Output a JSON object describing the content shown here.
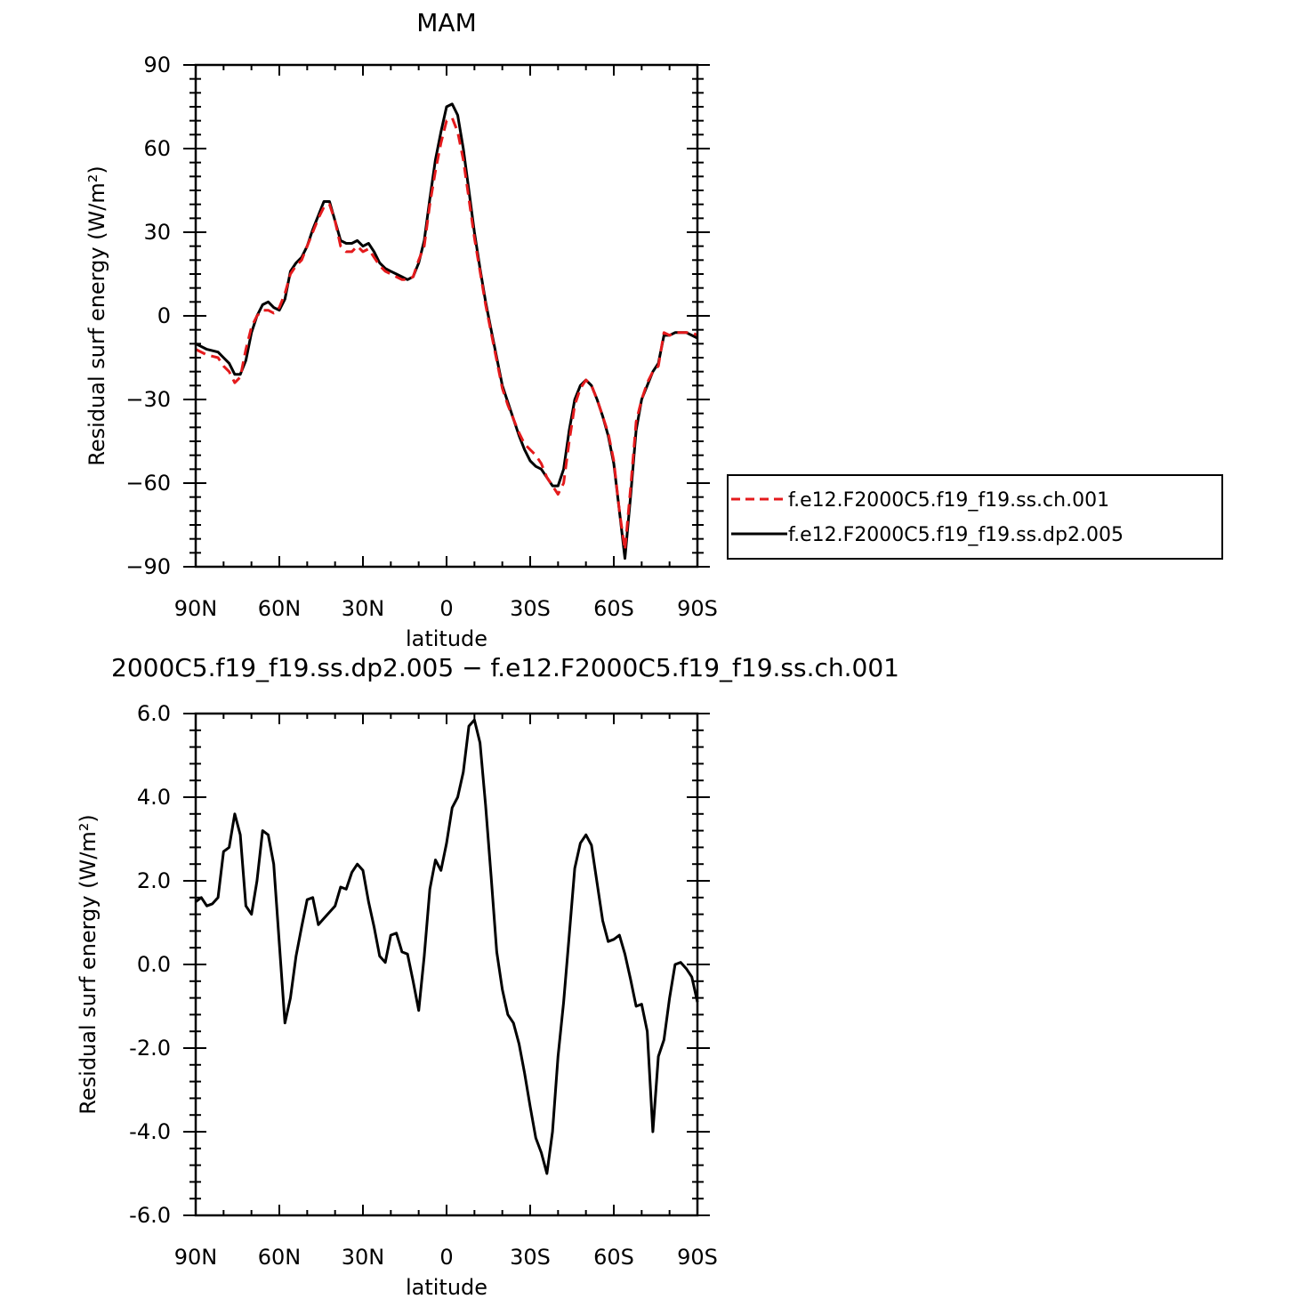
{
  "chart_data": [
    {
      "type": "line",
      "title": "MAM",
      "xlabel": "latitude",
      "ylabel": "Residual surf energy (W/m²)",
      "xlim": [
        90,
        -90
      ],
      "ylim": [
        -90,
        90
      ],
      "x_ticks": [
        90,
        60,
        30,
        0,
        -30,
        -60,
        -90
      ],
      "x_tick_labels": [
        "90N",
        "60N",
        "30N",
        "0",
        "30S",
        "60S",
        "90S"
      ],
      "y_ticks": [
        -90,
        -60,
        -30,
        0,
        30,
        60,
        90
      ],
      "y_tick_labels": [
        "−90",
        "−60",
        "−30",
        "0",
        "30",
        "60",
        "90"
      ],
      "legend_position": "right, outside plot",
      "series": [
        {
          "name": "f.e12.F2000C5.f19_f19.ss.ch.001",
          "color": "#e41a1c",
          "dash": "dashed",
          "x": [
            90,
            86,
            82,
            80,
            78,
            76,
            74,
            72,
            70,
            68,
            66,
            64,
            62,
            60,
            58,
            56,
            54,
            52,
            50,
            48,
            46,
            44,
            42,
            40,
            38,
            36,
            34,
            32,
            30,
            28,
            26,
            24,
            22,
            20,
            18,
            16,
            14,
            12,
            10,
            8,
            6,
            4,
            2,
            0,
            -2,
            -4,
            -6,
            -8,
            -10,
            -12,
            -14,
            -16,
            -18,
            -20,
            -22,
            -24,
            -26,
            -28,
            -30,
            -32,
            -34,
            -36,
            -38,
            -40,
            -42,
            -44,
            -46,
            -48,
            -50,
            -52,
            -54,
            -56,
            -58,
            -60,
            -62,
            -64,
            -66,
            -68,
            -70,
            -72,
            -74,
            -76,
            -78,
            -80,
            -82,
            -84,
            -86,
            -88,
            -90
          ],
          "y": [
            -12,
            -14,
            -15,
            -18,
            -20,
            -24,
            -22,
            -12,
            -4,
            0,
            2,
            2,
            1,
            3,
            8,
            15,
            18,
            20,
            25,
            30,
            35,
            39,
            40,
            34,
            25,
            23,
            23,
            25,
            23,
            24,
            21,
            18,
            16,
            15,
            14,
            13,
            13,
            14,
            20,
            25,
            40,
            52,
            62,
            70,
            71,
            66,
            56,
            42,
            28,
            16,
            4,
            -6,
            -16,
            -26,
            -32,
            -37,
            -42,
            -46,
            -48,
            -50,
            -53,
            -58,
            -61,
            -64,
            -60,
            -45,
            -32,
            -26,
            -23,
            -25,
            -30,
            -36,
            -42,
            -52,
            -70,
            -84,
            -62,
            -38,
            -30,
            -24,
            -20,
            -18,
            -6,
            -7,
            -6,
            -6,
            -6,
            -6,
            -7
          ]
        },
        {
          "name": "f.e12.F2000C5.f19_f19.ss.dp2.005",
          "color": "#000000",
          "dash": "solid",
          "x": [
            90,
            86,
            82,
            80,
            78,
            76,
            74,
            72,
            70,
            68,
            66,
            64,
            62,
            60,
            58,
            56,
            54,
            52,
            50,
            48,
            46,
            44,
            42,
            40,
            38,
            36,
            34,
            32,
            30,
            28,
            26,
            24,
            22,
            20,
            18,
            16,
            14,
            12,
            10,
            8,
            6,
            4,
            2,
            0,
            -2,
            -4,
            -6,
            -8,
            -10,
            -12,
            -14,
            -16,
            -18,
            -20,
            -22,
            -24,
            -26,
            -28,
            -30,
            -32,
            -34,
            -36,
            -38,
            -40,
            -42,
            -44,
            -46,
            -48,
            -50,
            -52,
            -54,
            -56,
            -58,
            -60,
            -62,
            -64,
            -66,
            -68,
            -70,
            -72,
            -74,
            -76,
            -78,
            -80,
            -82,
            -84,
            -86,
            -88,
            -90
          ],
          "y": [
            -10,
            -12,
            -13,
            -15,
            -17,
            -21,
            -21,
            -16,
            -6,
            0,
            4,
            5,
            3,
            2,
            6,
            16,
            19,
            21,
            25,
            31,
            36,
            41,
            41,
            34,
            27,
            26,
            26,
            27,
            25,
            26,
            23,
            19,
            17,
            16,
            15,
            14,
            13,
            14,
            19,
            27,
            42,
            56,
            66,
            75,
            76,
            72,
            60,
            45,
            30,
            17,
            5,
            -5,
            -15,
            -25,
            -31,
            -37,
            -43,
            -48,
            -52,
            -54,
            -55,
            -58,
            -61,
            -61,
            -55,
            -41,
            -30,
            -25,
            -23,
            -25,
            -30,
            -36,
            -43,
            -53,
            -70,
            -87,
            -65,
            -41,
            -30,
            -25,
            -20,
            -17,
            -7,
            -7,
            -6,
            -6,
            -6,
            -7,
            -8
          ]
        }
      ]
    },
    {
      "type": "line",
      "title": "2000C5.f19_f19.ss.dp2.005 − f.e12.F2000C5.f19_f19.ss.ch.001",
      "xlabel": "latitude",
      "ylabel": "Residual surf energy (W/m²)",
      "xlim": [
        90,
        -90
      ],
      "ylim": [
        -6,
        6
      ],
      "x_ticks": [
        90,
        60,
        30,
        0,
        -30,
        -60,
        -90
      ],
      "x_tick_labels": [
        "90N",
        "60N",
        "30N",
        "0",
        "30S",
        "60S",
        "90S"
      ],
      "y_ticks": [
        -6,
        -4,
        -2,
        0,
        2,
        4,
        6
      ],
      "y_tick_labels": [
        "-6.0",
        "-4.0",
        "-2.0",
        "0.0",
        "2.0",
        "4.0",
        "6.0"
      ],
      "series": [
        {
          "color": "#000000",
          "dash": "solid",
          "x": [
            90,
            88,
            86,
            84,
            82,
            80,
            78,
            76,
            74,
            72,
            70,
            68,
            66,
            64,
            62,
            60,
            58,
            56,
            54,
            52,
            50,
            48,
            46,
            44,
            42,
            40,
            38,
            36,
            34,
            32,
            30,
            28,
            26,
            24,
            22,
            20,
            18,
            16,
            14,
            12,
            10,
            8,
            6,
            4,
            2,
            0,
            -2,
            -4,
            -6,
            -8,
            -10,
            -12,
            -14,
            -16,
            -18,
            -20,
            -22,
            -24,
            -26,
            -28,
            -30,
            -32,
            -34,
            -36,
            -38,
            -40,
            -42,
            -44,
            -46,
            -48,
            -50,
            -52,
            -54,
            -56,
            -58,
            -60,
            -62,
            -64,
            -66,
            -68,
            -70,
            -72,
            -74,
            -76,
            -78,
            -80,
            -82,
            -84,
            -86,
            -88,
            -90
          ],
          "y": [
            1.5,
            1.6,
            1.4,
            1.45,
            1.6,
            2.7,
            2.8,
            3.6,
            3.1,
            1.4,
            1.2,
            2.0,
            3.2,
            3.1,
            2.4,
            0.5,
            -1.4,
            -0.8,
            0.2,
            0.9,
            1.55,
            1.6,
            0.95,
            1.1,
            1.25,
            1.4,
            1.85,
            1.8,
            2.2,
            2.4,
            2.25,
            1.5,
            0.9,
            0.2,
            0.05,
            0.7,
            0.75,
            0.3,
            0.25,
            -0.4,
            -1.1,
            0.2,
            1.8,
            2.5,
            2.25,
            2.9,
            3.75,
            4.0,
            4.6,
            5.7,
            5.85,
            5.3,
            3.8,
            2.1,
            0.3,
            -0.6,
            -1.2,
            -1.4,
            -1.9,
            -2.6,
            -3.4,
            -4.15,
            -4.5,
            -5.0,
            -4.0,
            -2.2,
            -0.9,
            0.7,
            2.3,
            2.9,
            3.1,
            2.85,
            1.95,
            1.05,
            0.55,
            0.6,
            0.7,
            0.25,
            -0.35,
            -1.0,
            -0.95,
            -1.6,
            -4.0,
            -2.2,
            -1.8,
            -0.8,
            0.0,
            0.05,
            -0.1,
            -0.3,
            -0.9
          ]
        }
      ]
    }
  ]
}
